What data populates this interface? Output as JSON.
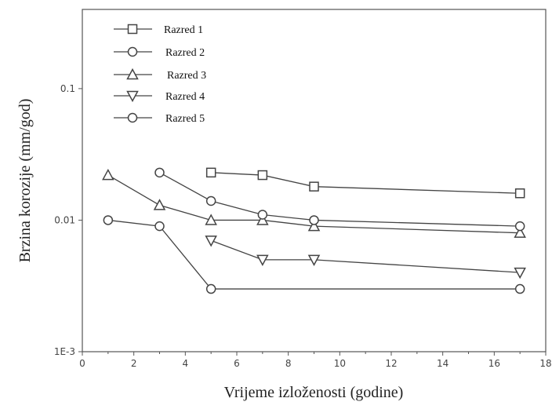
{
  "chart_data": {
    "type": "line",
    "title": "",
    "xlabel": "Vrijeme izloženosti (godine)",
    "ylabel": "Brzina korozije (mm/god)",
    "xlim": [
      0,
      18
    ],
    "ylim": [
      0.001,
      0.4
    ],
    "yscale": "log",
    "x_ticks": [
      "0",
      "2",
      "4",
      "6",
      "8",
      "10",
      "12",
      "14",
      "16",
      "18"
    ],
    "y_ticks": [
      {
        "value": 0.001,
        "label": "1E-3"
      },
      {
        "value": 0.01,
        "label": "0.01"
      },
      {
        "value": 0.1,
        "label": "0.1"
      }
    ],
    "grid": false,
    "legend_position": "top-left",
    "series": [
      {
        "name": "Razred 1",
        "marker": "square",
        "x": [
          5,
          7,
          9,
          17
        ],
        "values": [
          0.023,
          0.022,
          0.018,
          0.016
        ]
      },
      {
        "name": "Razred 2",
        "marker": "circle",
        "x": [
          1,
          3,
          5,
          17
        ],
        "values": [
          0.01,
          0.009,
          0.003,
          0.003
        ]
      },
      {
        "name": "Razred 3",
        "marker": "triangle-up",
        "x": [
          1,
          3,
          5,
          7,
          9,
          17
        ],
        "values": [
          0.022,
          0.013,
          0.01,
          0.01,
          0.009,
          0.008
        ]
      },
      {
        "name": "Razred 4",
        "marker": "triangle-down",
        "x": [
          5,
          7,
          9,
          17
        ],
        "values": [
          0.007,
          0.005,
          0.005,
          0.004
        ]
      },
      {
        "name": "Razred 5",
        "marker": "circle",
        "x": [
          3,
          5,
          7,
          9,
          17
        ],
        "values": [
          0.023,
          0.014,
          0.011,
          0.01,
          0.009
        ]
      }
    ]
  }
}
